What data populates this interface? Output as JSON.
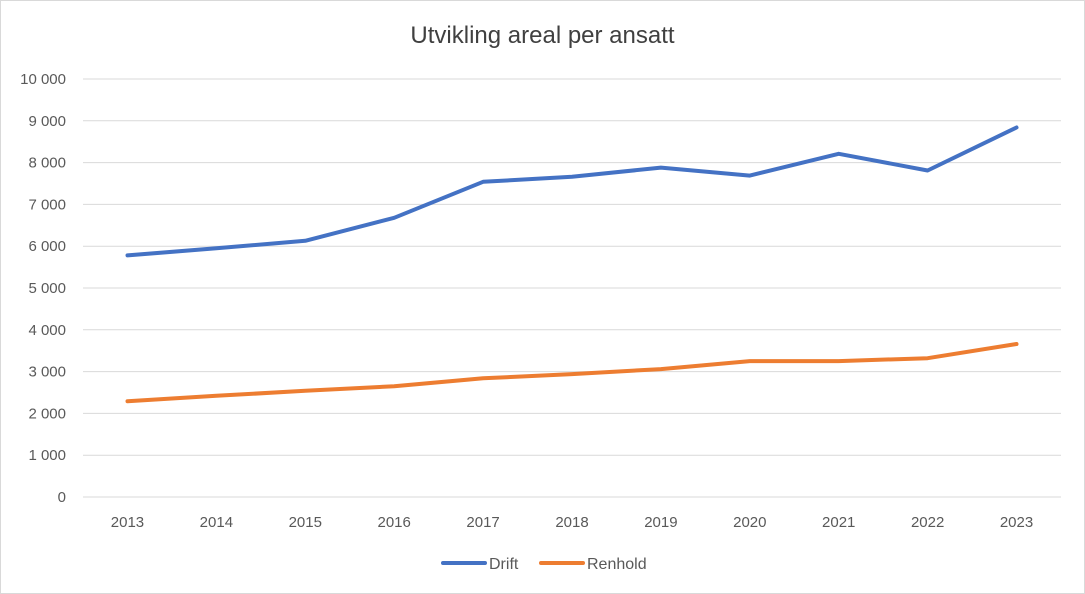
{
  "chart_data": {
    "type": "line",
    "title": "Utvikling areal per ansatt",
    "x": [
      "2013",
      "2014",
      "2015",
      "2016",
      "2017",
      "2018",
      "2019",
      "2020",
      "2021",
      "2022",
      "2023"
    ],
    "ylim": [
      0,
      10000
    ],
    "yticks": [
      "0",
      "1 000",
      "2 000",
      "3 000",
      "4 000",
      "5 000",
      "6 000",
      "7 000",
      "8 000",
      "9 000",
      "10 000"
    ],
    "grid": true,
    "legend": "bottom",
    "series": [
      {
        "name": "Drift",
        "color": "#4472c4",
        "values": [
          5780,
          5950,
          6130,
          6680,
          7540,
          7660,
          7880,
          7690,
          8210,
          7810,
          8840
        ]
      },
      {
        "name": "Renhold",
        "color": "#ed7d31",
        "values": [
          2290,
          2420,
          2540,
          2650,
          2840,
          2940,
          3060,
          3250,
          3250,
          3320,
          3660
        ]
      }
    ]
  }
}
